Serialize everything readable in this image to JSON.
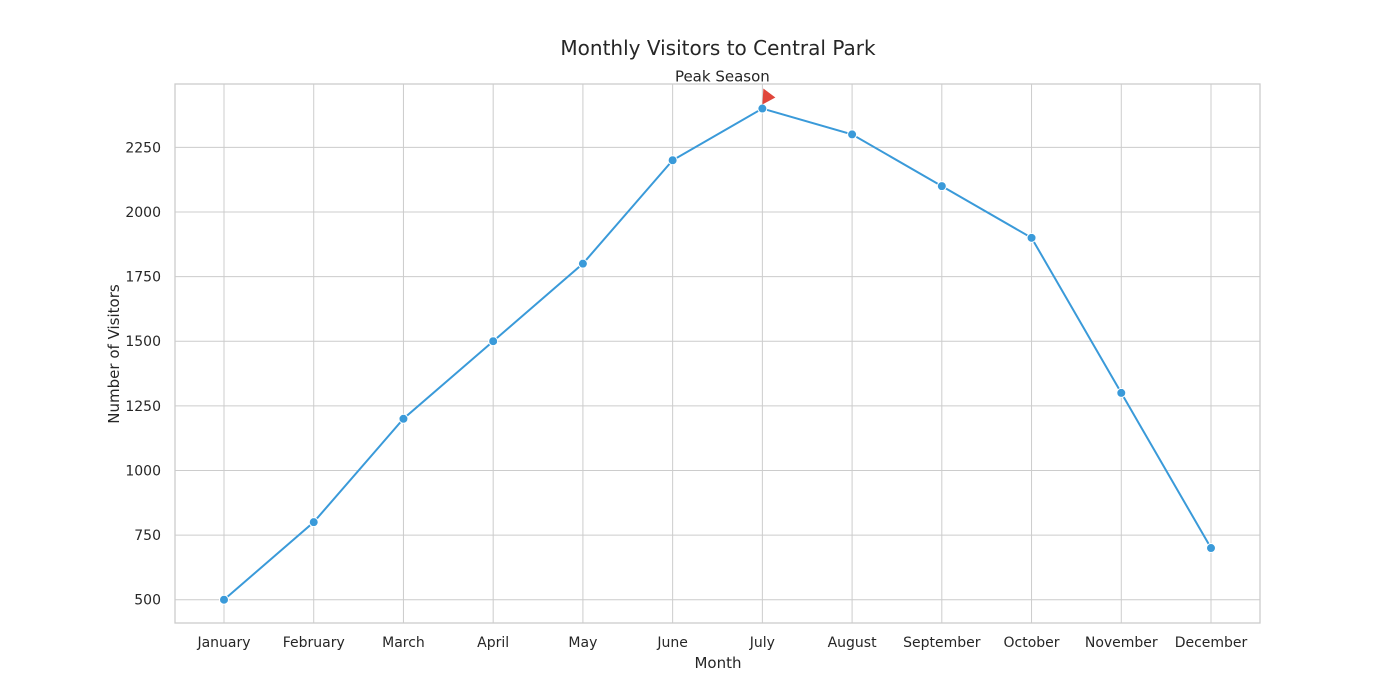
{
  "chart_data": {
    "type": "line",
    "title": "Monthly Visitors to Central Park",
    "xlabel": "Month",
    "ylabel": "Number of Visitors",
    "categories": [
      "January",
      "February",
      "March",
      "April",
      "May",
      "June",
      "July",
      "August",
      "September",
      "October",
      "November",
      "December"
    ],
    "series": [
      {
        "values": [
          500,
          800,
          1200,
          1500,
          1800,
          2200,
          2400,
          2300,
          2100,
          1900,
          1300,
          700
        ],
        "color": "#3a9ad9"
      }
    ],
    "yticks": [
      500,
      750,
      1000,
      1250,
      1500,
      1750,
      2000,
      2250
    ],
    "ylim": [
      410,
      2495
    ],
    "grid": true,
    "annotation": {
      "text": "Peak Season",
      "category": "July",
      "value": 2400,
      "arrow_color": "#e0463b"
    }
  }
}
